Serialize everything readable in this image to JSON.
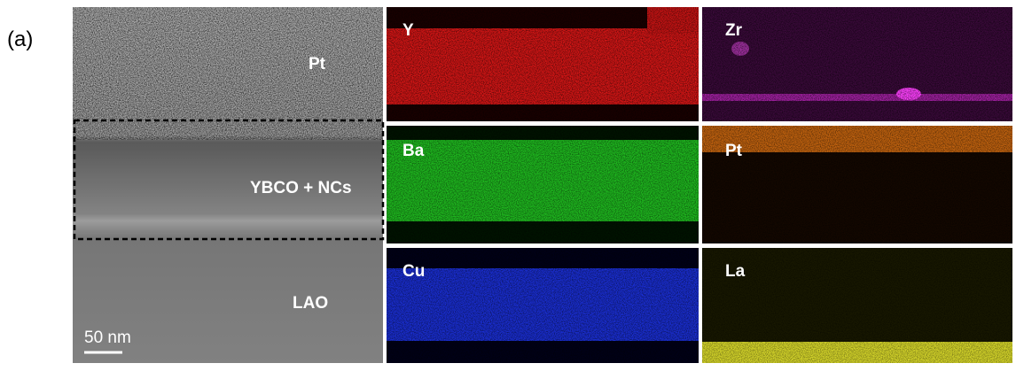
{
  "panel_label": "(a)",
  "tem_image": {
    "labels": [
      "Pt",
      "YBCO + NCs",
      "LAO"
    ],
    "scale_bar": "50 nm"
  },
  "eds_maps": [
    "Y",
    "Zr",
    "Ba",
    "Pt",
    "Cu",
    "La"
  ]
}
